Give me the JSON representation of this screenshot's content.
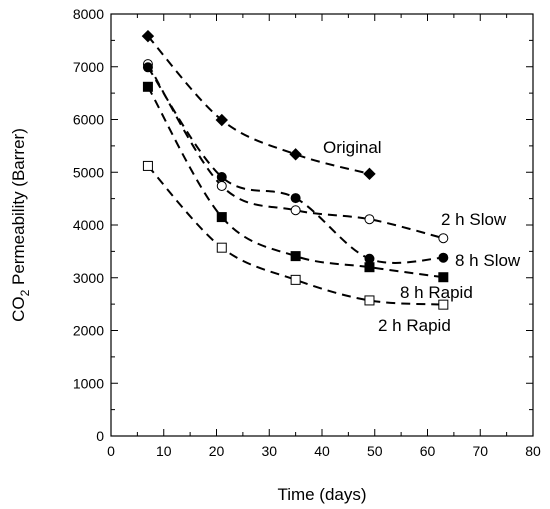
{
  "chart_data": {
    "type": "scatter",
    "xlabel": "Time (days)",
    "ylabel_main": "CO",
    "ylabel_sub": "2",
    "ylabel_rest": " Permeability (Barrer)",
    "xlim": [
      0,
      80
    ],
    "ylim": [
      0,
      8000
    ],
    "xticks": [
      0,
      10,
      20,
      30,
      40,
      50,
      60,
      70,
      80
    ],
    "yticks": [
      0,
      1000,
      2000,
      3000,
      4000,
      5000,
      6000,
      7000,
      8000
    ],
    "grid": false,
    "series": [
      {
        "name": "Original",
        "marker": "diamond-filled",
        "x": [
          7,
          21,
          35,
          49
        ],
        "y": [
          7580,
          5990,
          5340,
          4970
        ]
      },
      {
        "name": "2 h Slow",
        "marker": "circle-open",
        "x": [
          7,
          21,
          35,
          49,
          63
        ],
        "y": [
          7050,
          4740,
          4280,
          4110,
          3750
        ]
      },
      {
        "name": "8 h Slow",
        "marker": "circle-filled",
        "x": [
          7,
          21,
          35,
          49,
          63
        ],
        "y": [
          6990,
          4910,
          4510,
          3360,
          3380
        ]
      },
      {
        "name": "8 h Rapid",
        "marker": "square-filled",
        "x": [
          7,
          21,
          35,
          49,
          63
        ],
        "y": [
          6620,
          4150,
          3410,
          3200,
          3010
        ]
      },
      {
        "name": "2 h Rapid",
        "marker": "square-open",
        "x": [
          7,
          21,
          35,
          49,
          63
        ],
        "y": [
          5120,
          3570,
          2960,
          2570,
          2490
        ]
      }
    ]
  }
}
